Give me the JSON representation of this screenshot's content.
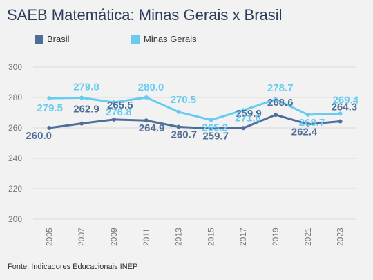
{
  "title": "SAEB Matemática: Minas Gerais x Brasil",
  "footer": "Fonte: Indicadores Educacionais INEP",
  "chart_data": {
    "type": "line",
    "title": "SAEB Matemática: Minas Gerais x Brasil",
    "x": [
      "2005",
      "2007",
      "2009",
      "2011",
      "2013",
      "2015",
      "2017",
      "2019",
      "2021",
      "2023"
    ],
    "ylim": [
      200,
      300
    ],
    "yticks": [
      "200",
      "220",
      "240",
      "260",
      "280",
      "300"
    ],
    "grid": true,
    "legend": "top-left",
    "series": [
      {
        "name": "Brasil",
        "color": "#4f6e98",
        "values": [
          260.0,
          262.9,
          265.5,
          264.9,
          260.7,
          259.7,
          259.9,
          268.6,
          262.4,
          264.3
        ],
        "labels": [
          "260.0",
          "262.9",
          "265.5",
          "264.9",
          "260.7",
          "259.7",
          "259.9",
          "268.6",
          "262.4",
          "264.3"
        ]
      },
      {
        "name": "Minas Gerais",
        "color": "#68ccf0",
        "values": [
          279.5,
          279.8,
          276.8,
          280.0,
          270.5,
          265.2,
          271.6,
          278.7,
          268.7,
          269.4
        ],
        "labels": [
          "279.5",
          "279.8",
          "276.8",
          "280.0",
          "270.5",
          "265.2",
          "271.6",
          "278.7",
          "268.7",
          "269.4"
        ]
      }
    ]
  }
}
